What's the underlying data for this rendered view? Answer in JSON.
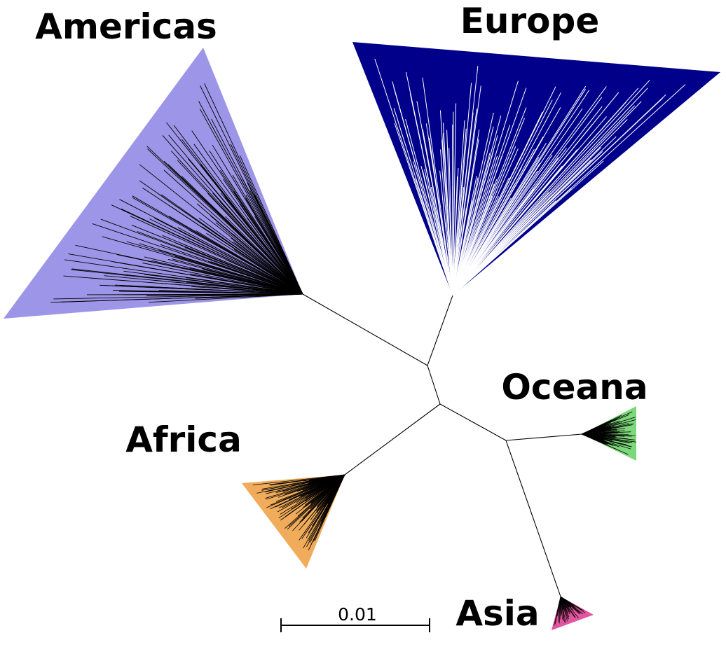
{
  "diagram": {
    "type": "unrooted phylogenetic tree",
    "clades": [
      {
        "id": "americas",
        "label": "Americas",
        "color": "#9d95e8",
        "branch_color": "#000000"
      },
      {
        "id": "europe",
        "label": "Europe",
        "color": "#00008b",
        "branch_color": "#ffffff"
      },
      {
        "id": "oceana",
        "label": "Oceana",
        "color": "#7dd87a",
        "branch_color": "#000000"
      },
      {
        "id": "africa",
        "label": "Africa",
        "color": "#f0ac5a",
        "branch_color": "#000000"
      },
      {
        "id": "asia",
        "label": "Asia",
        "color": "#e2559f",
        "branch_color": "#000000"
      }
    ],
    "edge_color": "#000000",
    "scale_bar": {
      "label": "0.01"
    }
  }
}
